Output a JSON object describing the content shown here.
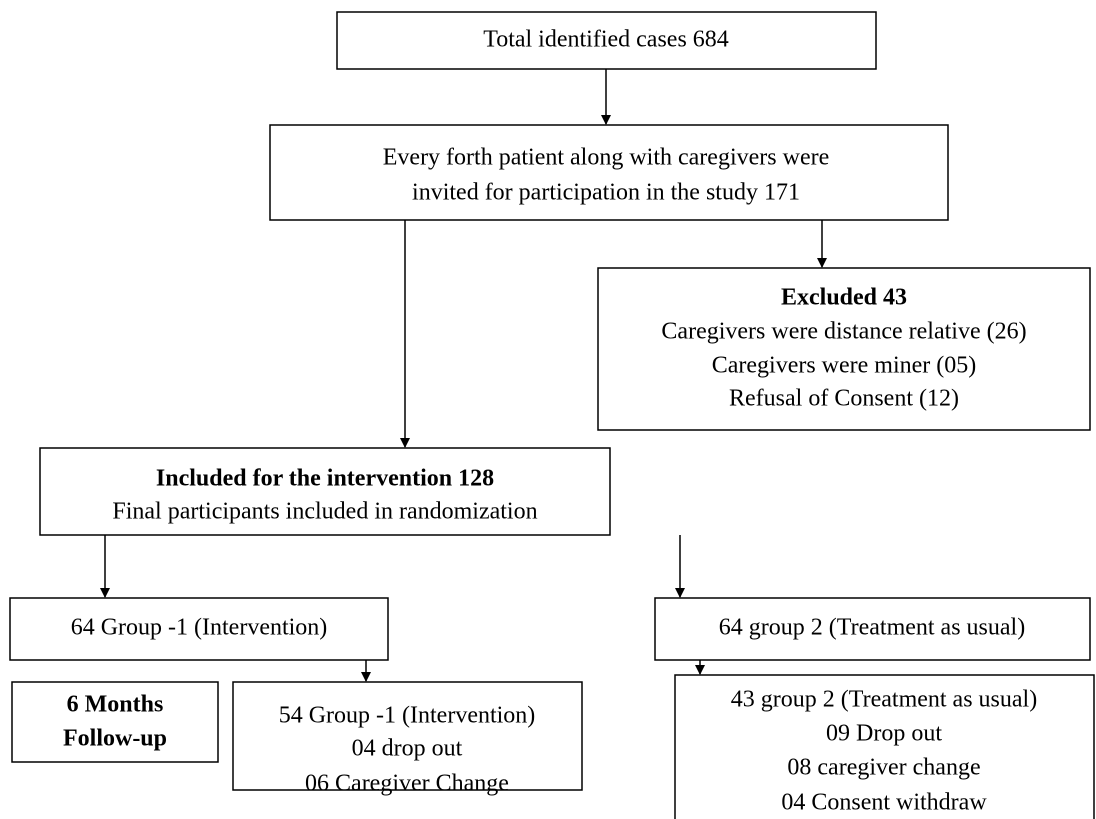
{
  "nodes": [
    {
      "lines": [
        "Total identified cases 684"
      ]
    },
    {
      "lines": [
        "Every forth patient along with caregivers were",
        "invited for participation in the study 171"
      ]
    },
    {
      "title": "Excluded 43",
      "lines": [
        "Caregivers were distance relative (26)",
        "Caregivers were miner (05)",
        "Refusal of Consent (12)"
      ]
    },
    {
      "title": "Included for the intervention 128",
      "lines": [
        "Final participants included in randomization"
      ]
    },
    {
      "lines": [
        "64 Group -1 (Intervention)"
      ]
    },
    {
      "lines": [
        "64 group 2 (Treatment as usual)"
      ]
    },
    {
      "title_lines": [
        "6 Months",
        "Follow-up"
      ]
    },
    {
      "lines": [
        "54 Group -1 (Intervention)",
        "04 drop out",
        "06 Caregiver Change"
      ]
    },
    {
      "lines": [
        "43 group 2 (Treatment as usual)",
        "09 Drop out",
        "08 caregiver change",
        "04 Consent withdraw"
      ]
    }
  ]
}
